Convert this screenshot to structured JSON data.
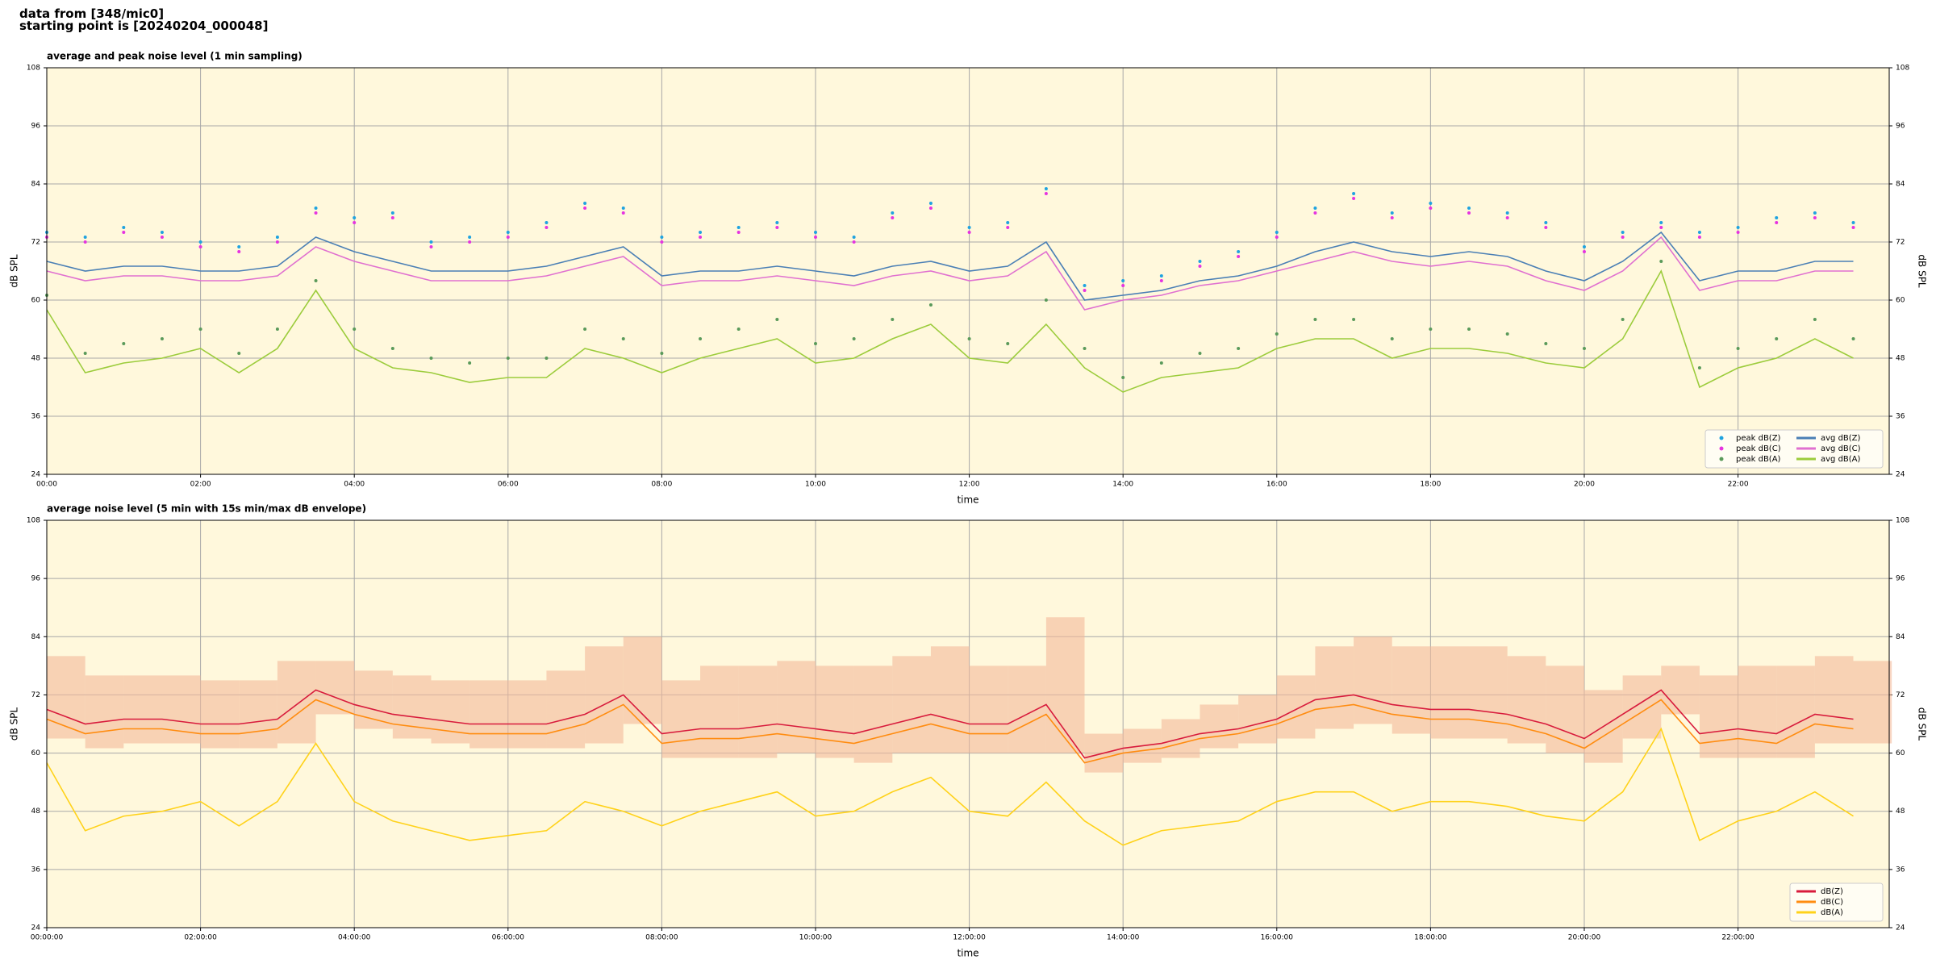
{
  "header": [
    "data from [348/mic0]",
    "starting point is [20240204_000048]"
  ],
  "chart_data": [
    {
      "type": "line",
      "title": "average and peak noise level (1 min sampling)",
      "xlabel": "time",
      "ylabel": "dB SPL",
      "background": "#fff8dc",
      "grid": true,
      "legend": "lower right",
      "legend_columns": 2,
      "xlim": [
        0,
        1438
      ],
      "ylim": [
        24,
        108
      ],
      "yticks": [
        24,
        36,
        48,
        60,
        72,
        84,
        96,
        108
      ],
      "xticks": [
        {
          "value": 0,
          "label": "00:00"
        },
        {
          "value": 120,
          "label": "02:00"
        },
        {
          "value": 240,
          "label": "04:00"
        },
        {
          "value": 360,
          "label": "06:00"
        },
        {
          "value": 480,
          "label": "08:00"
        },
        {
          "value": 600,
          "label": "10:00"
        },
        {
          "value": 720,
          "label": "12:00"
        },
        {
          "value": 840,
          "label": "14:00"
        },
        {
          "value": 960,
          "label": "16:00"
        },
        {
          "value": 1080,
          "label": "18:00"
        },
        {
          "value": 1200,
          "label": "20:00"
        },
        {
          "value": 1320,
          "label": "22:00"
        }
      ],
      "x": [
        0,
        30,
        60,
        90,
        120,
        150,
        180,
        210,
        240,
        270,
        300,
        330,
        360,
        390,
        420,
        450,
        480,
        510,
        540,
        570,
        600,
        630,
        660,
        690,
        720,
        750,
        780,
        810,
        840,
        870,
        900,
        930,
        960,
        990,
        1020,
        1050,
        1080,
        1110,
        1140,
        1170,
        1200,
        1230,
        1260,
        1290,
        1320,
        1350,
        1380,
        1410
      ],
      "series": [
        {
          "name": "peak dB(Z)",
          "style": "dots",
          "color": "#1fa3e0",
          "values": [
            74,
            73,
            75,
            74,
            72,
            71,
            73,
            79,
            77,
            78,
            72,
            73,
            74,
            76,
            80,
            79,
            73,
            74,
            75,
            76,
            74,
            73,
            78,
            80,
            75,
            76,
            83,
            63,
            64,
            65,
            68,
            70,
            74,
            79,
            82,
            78,
            80,
            79,
            78,
            76,
            71,
            74,
            76,
            74,
            75,
            77,
            78,
            76
          ]
        },
        {
          "name": "peak dB(C)",
          "style": "dots",
          "color": "#e633e0",
          "values": [
            73,
            72,
            74,
            73,
            71,
            70,
            72,
            78,
            76,
            77,
            71,
            72,
            73,
            75,
            79,
            78,
            72,
            73,
            74,
            75,
            73,
            72,
            77,
            79,
            74,
            75,
            82,
            62,
            63,
            64,
            67,
            69,
            73,
            78,
            81,
            77,
            79,
            78,
            77,
            75,
            70,
            73,
            75,
            73,
            74,
            76,
            77,
            75
          ]
        },
        {
          "name": "peak dB(A)",
          "style": "dots",
          "color": "#5a9a5a",
          "values": [
            61,
            49,
            51,
            52,
            54,
            49,
            54,
            64,
            54,
            50,
            48,
            47,
            48,
            48,
            54,
            52,
            49,
            52,
            54,
            56,
            51,
            52,
            56,
            59,
            52,
            51,
            60,
            50,
            44,
            47,
            49,
            50,
            53,
            56,
            56,
            52,
            54,
            54,
            53,
            51,
            50,
            56,
            68,
            46,
            50,
            52,
            56,
            52
          ]
        },
        {
          "name": "avg dB(Z)",
          "style": "line",
          "color": "#4a7fb5",
          "values": [
            68,
            66,
            67,
            67,
            66,
            66,
            67,
            73,
            70,
            68,
            66,
            66,
            66,
            67,
            69,
            71,
            65,
            66,
            66,
            67,
            66,
            65,
            67,
            68,
            66,
            67,
            72,
            60,
            61,
            62,
            64,
            65,
            67,
            70,
            72,
            70,
            69,
            70,
            69,
            66,
            64,
            68,
            74,
            64,
            66,
            66,
            68,
            68
          ]
        },
        {
          "name": "avg dB(C)",
          "style": "line",
          "color": "#e070d0",
          "values": [
            66,
            64,
            65,
            65,
            64,
            64,
            65,
            71,
            68,
            66,
            64,
            64,
            64,
            65,
            67,
            69,
            63,
            64,
            64,
            65,
            64,
            63,
            65,
            66,
            64,
            65,
            70,
            58,
            60,
            61,
            63,
            64,
            66,
            68,
            70,
            68,
            67,
            68,
            67,
            64,
            62,
            66,
            73,
            62,
            64,
            64,
            66,
            66
          ]
        },
        {
          "name": "avg dB(A)",
          "style": "line",
          "color": "#9ccc3c",
          "values": [
            58,
            45,
            47,
            48,
            50,
            45,
            50,
            62,
            50,
            46,
            45,
            43,
            44,
            44,
            50,
            48,
            45,
            48,
            50,
            52,
            47,
            48,
            52,
            55,
            48,
            47,
            55,
            46,
            41,
            44,
            45,
            46,
            50,
            52,
            52,
            48,
            50,
            50,
            49,
            47,
            46,
            52,
            66,
            42,
            46,
            48,
            52,
            48
          ]
        }
      ]
    },
    {
      "type": "line",
      "title": "average noise level (5 min with 15s min/max dB envelope)",
      "xlabel": "time",
      "ylabel": "dB SPL",
      "background": "#fff8dc",
      "grid": true,
      "legend": "lower right",
      "legend_columns": 1,
      "xlim": [
        0,
        1438
      ],
      "ylim": [
        24,
        108
      ],
      "yticks": [
        24,
        36,
        48,
        60,
        72,
        84,
        96,
        108
      ],
      "xticks": [
        {
          "value": 0,
          "label": "00:00:00"
        },
        {
          "value": 120,
          "label": "02:00:00"
        },
        {
          "value": 240,
          "label": "04:00:00"
        },
        {
          "value": 360,
          "label": "06:00:00"
        },
        {
          "value": 480,
          "label": "08:00:00"
        },
        {
          "value": 600,
          "label": "10:00:00"
        },
        {
          "value": 720,
          "label": "12:00:00"
        },
        {
          "value": 840,
          "label": "14:00:00"
        },
        {
          "value": 960,
          "label": "16:00:00"
        },
        {
          "value": 1080,
          "label": "18:00:00"
        },
        {
          "value": 1200,
          "label": "20:00:00"
        },
        {
          "value": 1320,
          "label": "22:00:00"
        }
      ],
      "x": [
        0,
        30,
        60,
        90,
        120,
        150,
        180,
        210,
        240,
        270,
        300,
        330,
        360,
        390,
        420,
        450,
        480,
        510,
        540,
        570,
        600,
        630,
        660,
        690,
        720,
        750,
        780,
        810,
        840,
        870,
        900,
        930,
        960,
        990,
        1020,
        1050,
        1080,
        1110,
        1140,
        1170,
        1200,
        1230,
        1260,
        1290,
        1320,
        1350,
        1380,
        1410
      ],
      "envelope": {
        "color": "#f4b99a",
        "low": [
          63,
          61,
          62,
          62,
          61,
          61,
          62,
          68,
          65,
          63,
          62,
          61,
          61,
          61,
          62,
          66,
          59,
          59,
          59,
          60,
          59,
          58,
          60,
          60,
          60,
          60,
          60,
          56,
          58,
          59,
          61,
          62,
          63,
          65,
          66,
          64,
          63,
          63,
          62,
          60,
          58,
          63,
          68,
          59,
          59,
          59,
          62,
          62
        ],
        "high": [
          80,
          76,
          76,
          76,
          75,
          75,
          79,
          79,
          77,
          76,
          75,
          75,
          75,
          77,
          82,
          84,
          75,
          78,
          78,
          79,
          78,
          78,
          80,
          82,
          78,
          78,
          88,
          64,
          65,
          67,
          70,
          72,
          76,
          82,
          84,
          82,
          82,
          82,
          80,
          78,
          73,
          76,
          78,
          76,
          78,
          78,
          80,
          79
        ]
      },
      "series": [
        {
          "name": "dB(Z)",
          "style": "line",
          "color": "#d81b3c",
          "values": [
            69,
            66,
            67,
            67,
            66,
            66,
            67,
            73,
            70,
            68,
            67,
            66,
            66,
            66,
            68,
            72,
            64,
            65,
            65,
            66,
            65,
            64,
            66,
            68,
            66,
            66,
            70,
            59,
            61,
            62,
            64,
            65,
            67,
            71,
            72,
            70,
            69,
            69,
            68,
            66,
            63,
            68,
            73,
            64,
            65,
            64,
            68,
            67
          ]
        },
        {
          "name": "dB(C)",
          "style": "line",
          "color": "#ff8c10",
          "values": [
            67,
            64,
            65,
            65,
            64,
            64,
            65,
            71,
            68,
            66,
            65,
            64,
            64,
            64,
            66,
            70,
            62,
            63,
            63,
            64,
            63,
            62,
            64,
            66,
            64,
            64,
            68,
            58,
            60,
            61,
            63,
            64,
            66,
            69,
            70,
            68,
            67,
            67,
            66,
            64,
            61,
            66,
            71,
            62,
            63,
            62,
            66,
            65
          ]
        },
        {
          "name": "dB(A)",
          "style": "line",
          "color": "#ffd21a",
          "values": [
            58,
            44,
            47,
            48,
            50,
            45,
            50,
            62,
            50,
            46,
            44,
            42,
            43,
            44,
            50,
            48,
            45,
            48,
            50,
            52,
            47,
            48,
            52,
            55,
            48,
            47,
            54,
            46,
            41,
            44,
            45,
            46,
            50,
            52,
            52,
            48,
            50,
            50,
            49,
            47,
            46,
            52,
            65,
            42,
            46,
            48,
            52,
            47
          ]
        }
      ]
    }
  ]
}
